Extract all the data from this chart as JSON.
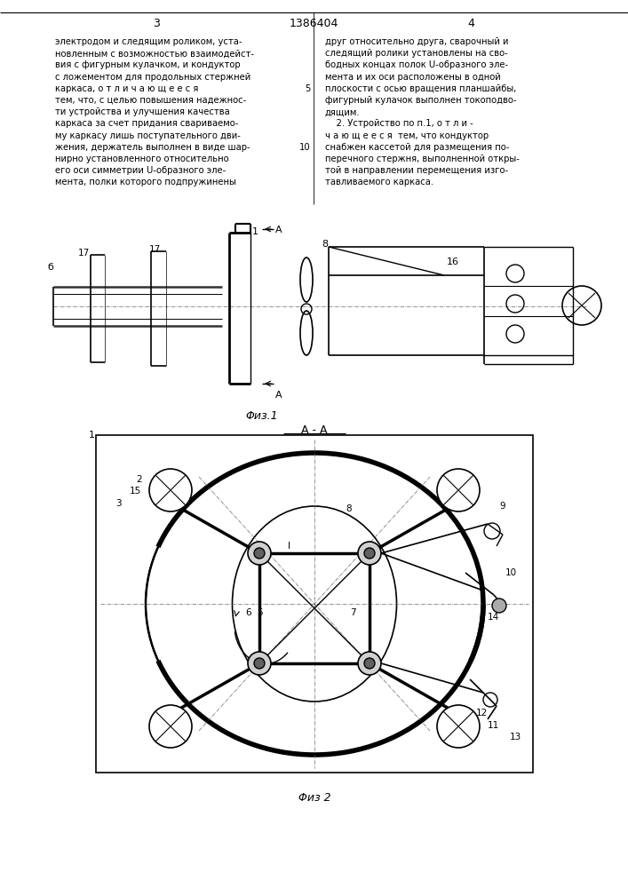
{
  "bg_color": "#ffffff",
  "line_color": "#000000",
  "left_column_text": [
    "электродом и следящим роликом, уста-",
    "новленным с возможностью взаимодейст-",
    "вия с фигурным кулачком, и кондуктор",
    "с ложементом для продольных стержней",
    "каркаса, о т л и ч а ю щ е е с я",
    "тем, что, с целью повышения надежнос-",
    "ти устройства и улучшения качества",
    "каркаса за счет придания свариваемо-",
    "му каркасу лишь поступательного дви-",
    "жения, держатель выполнен в виде шар-",
    "нирно установленного относительно",
    "его оси симметрии U-образного эле-",
    "мента, полки которого подпружинены"
  ],
  "right_column_text": [
    "друг относительно друга, сварочный и",
    "следящий ролики установлены на сво-",
    "бодных концах полок U-образного эле-",
    "мента и их оси расположены в одной",
    "плоскости с осью вращения планшайбы,",
    "фигурный кулачок выполнен токоподво-",
    "дящим.",
    "    2. Устройство по п.1, о т л и -",
    "ч а ю щ е е с я  тем, что кондуктор",
    "снабжен кассетой для размещения по-",
    "перечного стержня, выполненной откры-",
    "той в направлении перемещения изго-",
    "тавливаемого каркаса."
  ],
  "fig1_label": "Φиз.1",
  "fig2_label": "Φиз 2",
  "fig2_title": "A - A"
}
